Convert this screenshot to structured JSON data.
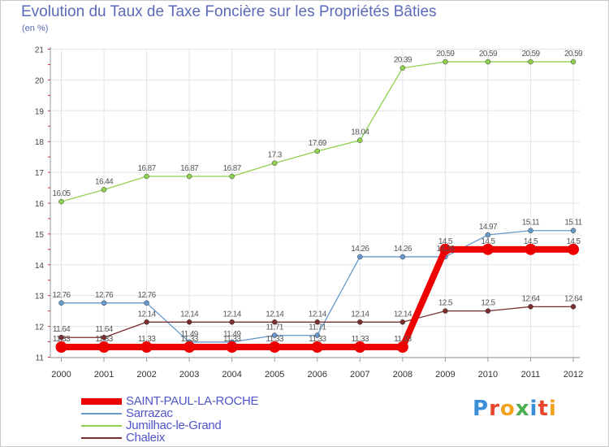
{
  "title": "Evolution du Taux de Taxe Foncière sur les Propriétés Bâties",
  "subtitle": "(en %)",
  "logo": {
    "text": "Proxiti",
    "colors": [
      "#3a8fd6",
      "#e8452c",
      "#f3a21f",
      "#4cae4c",
      "#3a8fd6",
      "#e8452c",
      "#f3a21f"
    ]
  },
  "chart_data": {
    "type": "line",
    "title": "Evolution du Taux de Taxe Foncière sur les Propriétés Bâties",
    "ylabel": "(en %)",
    "xlabel": "",
    "ylim": [
      11,
      21
    ],
    "yticks": [
      11,
      12,
      13,
      14,
      15,
      16,
      17,
      18,
      19,
      20,
      21
    ],
    "categories": [
      "2000",
      "2001",
      "2002",
      "2003",
      "2004",
      "2005",
      "2006",
      "2007",
      "2008",
      "2009",
      "2010",
      "2011",
      "2012"
    ],
    "grid": true,
    "legend": "bottom-left",
    "series": [
      {
        "name": "Jumilhac-le-Grand",
        "color": "#8fd14f",
        "values": [
          16.05,
          16.44,
          16.87,
          16.87,
          16.87,
          17.3,
          17.69,
          18.04,
          20.39,
          20.59,
          20.59,
          20.59,
          20.59
        ],
        "labels": [
          "16.05",
          "16.44",
          "16.87",
          "16.87",
          "16.87",
          "17.3",
          "17.69",
          "18.04",
          "20.39",
          "20.59",
          "20.59",
          "20.59",
          "20.59"
        ]
      },
      {
        "name": "Sarrazac",
        "color": "#6699cc",
        "values": [
          12.76,
          12.76,
          12.76,
          11.49,
          11.49,
          11.71,
          11.71,
          14.26,
          14.26,
          14.26,
          14.97,
          15.11,
          15.11
        ],
        "labels": [
          "12.76",
          "12.76",
          "12.76",
          "11.49",
          "11.49",
          "11.71",
          "11.71",
          "14.26",
          "14.26",
          "14.26",
          "14.97",
          "15.11",
          "15.11"
        ]
      },
      {
        "name": "Chaleix",
        "color": "#7a2e2e",
        "values": [
          11.64,
          11.64,
          12.14,
          12.14,
          12.14,
          12.14,
          12.14,
          12.14,
          12.14,
          12.5,
          12.5,
          12.64,
          12.64
        ],
        "labels": [
          "11.64",
          "11.64",
          "12.14",
          "12.14",
          "12.14",
          "12.14",
          "12.14",
          "12.14",
          "12.14",
          "12.5",
          "12.5",
          "12.64",
          "12.64"
        ]
      },
      {
        "name": "SAINT-PAUL-LA-ROCHE",
        "color": "#ee0000",
        "values": [
          11.33,
          11.33,
          11.33,
          11.33,
          11.33,
          11.33,
          11.33,
          11.33,
          11.33,
          14.5,
          14.5,
          14.5,
          14.5
        ],
        "labels": [
          "11.33",
          "11.33",
          "11.33",
          "11.33",
          "11.33",
          "11.33",
          "11.33",
          "11.33",
          "11.33",
          "14.5",
          "14.5",
          "14.5",
          "14.5"
        ]
      }
    ],
    "legend_order": [
      "SAINT-PAUL-LA-ROCHE",
      "Sarrazac",
      "Jumilhac-le-Grand",
      "Chaleix"
    ]
  }
}
